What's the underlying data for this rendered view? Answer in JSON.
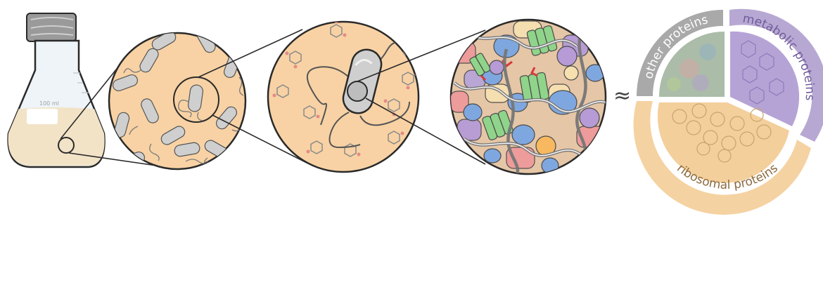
{
  "flask": {
    "volume_label": "100 ml"
  },
  "approx_symbol": "≈",
  "proteome": {
    "sectors": [
      {
        "id": "other",
        "label": "other proteins",
        "color": "#a9a9a9",
        "fill": "#9fb39f"
      },
      {
        "id": "metabolic",
        "label": "metabolic proteins",
        "color": "#b7a8d3",
        "fill": "#b6a3d6"
      },
      {
        "id": "ribosomal",
        "label": "ribosomal proteins",
        "color": "#f5d2a2",
        "fill": "#f3cf9c"
      }
    ]
  },
  "colors": {
    "medium": "#f8d2a4",
    "cell": "#cfcfcf",
    "outline": "#2a2a2a",
    "crowd_blue": "#7fa7df",
    "crowd_green": "#8fd48a",
    "crowd_pink": "#ef9a9a",
    "crowd_purple": "#b69bd6",
    "crowd_orange": "#f7b860"
  }
}
